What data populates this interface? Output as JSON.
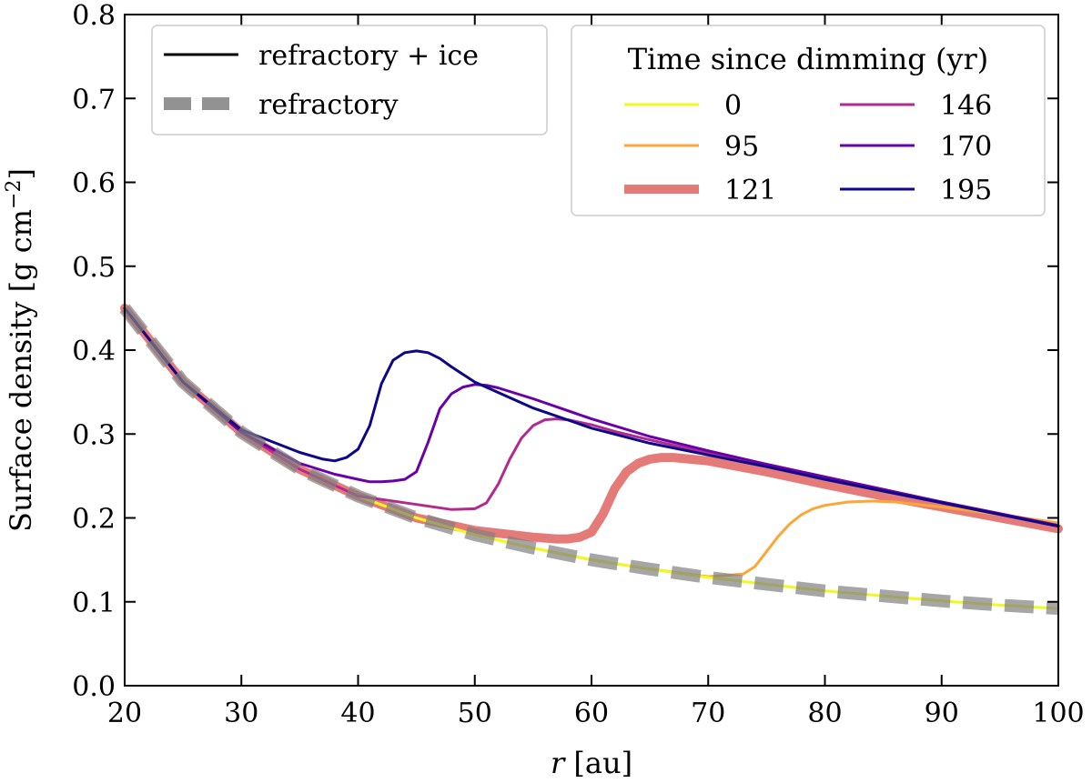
{
  "chart_data": {
    "type": "line",
    "title": "",
    "xlabel_var": "r",
    "xlabel_unit": " [au]",
    "ylabel": "Surface density [g cm",
    "ylabel_sup": "−2",
    "ylabel_end": "]",
    "xlim": [
      20,
      100
    ],
    "ylim": [
      0.0,
      0.8
    ],
    "xticks": [
      20,
      30,
      40,
      50,
      60,
      70,
      80,
      90,
      100
    ],
    "yticks": [
      0.0,
      0.1,
      0.2,
      0.3,
      0.4,
      0.5,
      0.6,
      0.7,
      0.8
    ],
    "xtick_labels": [
      "20",
      "30",
      "40",
      "50",
      "60",
      "70",
      "80",
      "90",
      "100"
    ],
    "ytick_labels": [
      "0.0",
      "0.1",
      "0.2",
      "0.3",
      "0.4",
      "0.5",
      "0.6",
      "0.7",
      "0.8"
    ],
    "style_legend": {
      "placement": "top-left",
      "entries": [
        {
          "label": "refractory + ice",
          "color": "#000000",
          "style": "solid"
        },
        {
          "label": "refractory",
          "color": "#808080",
          "style": "dashed"
        }
      ]
    },
    "time_legend": {
      "placement": "top-right",
      "title": "Time since dimming (yr)",
      "entries": [
        {
          "label": "0",
          "color": "#f0f921"
        },
        {
          "label": "95",
          "color": "#fca636"
        },
        {
          "label": "121",
          "color": "#e16462"
        },
        {
          "label": "146",
          "color": "#b12a90"
        },
        {
          "label": "170",
          "color": "#6a00a8"
        },
        {
          "label": "195",
          "color": "#0d0887"
        }
      ]
    },
    "series": [
      {
        "name": "refractory (t=0)",
        "time": "0",
        "color": "#f0f921",
        "x": [
          20,
          25,
          30,
          35,
          40,
          45,
          50,
          55,
          60,
          65,
          70,
          75,
          80,
          85,
          90,
          95,
          100
        ],
        "values": [
          0.45,
          0.362,
          0.302,
          0.258,
          0.226,
          0.2,
          0.18,
          0.164,
          0.15,
          0.139,
          0.129,
          0.121,
          0.113,
          0.107,
          0.101,
          0.096,
          0.092
        ]
      },
      {
        "name": "refractory + ice (t=95)",
        "time": "95",
        "color": "#fca636",
        "x": [
          20,
          25,
          30,
          35,
          40,
          45,
          50,
          55,
          60,
          65,
          70,
          73,
          74,
          75,
          76,
          77,
          78,
          79,
          80,
          82,
          84,
          86,
          90,
          95,
          100
        ],
        "values": [
          0.45,
          0.362,
          0.302,
          0.258,
          0.226,
          0.2,
          0.18,
          0.164,
          0.15,
          0.139,
          0.13,
          0.133,
          0.142,
          0.16,
          0.178,
          0.193,
          0.204,
          0.211,
          0.215,
          0.219,
          0.22,
          0.219,
          0.213,
          0.204,
          0.194
        ]
      },
      {
        "name": "refractory + ice (t=121)",
        "time": "121",
        "color": "#e16462",
        "x": [
          20,
          25,
          30,
          35,
          40,
          45,
          50,
          55,
          57,
          58,
          59,
          60,
          61,
          62,
          63,
          64,
          65,
          66,
          67,
          70,
          75,
          80,
          85,
          90,
          95,
          100
        ],
        "values": [
          0.45,
          0.362,
          0.302,
          0.258,
          0.226,
          0.2,
          0.185,
          0.177,
          0.175,
          0.175,
          0.177,
          0.183,
          0.205,
          0.235,
          0.255,
          0.265,
          0.27,
          0.272,
          0.272,
          0.268,
          0.255,
          0.24,
          0.226,
          0.213,
          0.2,
          0.187
        ]
      },
      {
        "name": "refractory + ice (t=146)",
        "time": "146",
        "color": "#b12a90",
        "x": [
          20,
          25,
          30,
          35,
          40,
          45,
          48,
          50,
          51,
          52,
          53,
          54,
          55,
          56,
          57,
          58,
          60,
          62,
          65,
          70,
          75,
          80,
          85,
          90,
          95,
          100
        ],
        "values": [
          0.45,
          0.362,
          0.302,
          0.258,
          0.226,
          0.216,
          0.21,
          0.211,
          0.218,
          0.24,
          0.27,
          0.295,
          0.31,
          0.317,
          0.318,
          0.317,
          0.311,
          0.303,
          0.293,
          0.277,
          0.262,
          0.247,
          0.233,
          0.219,
          0.205,
          0.191
        ]
      },
      {
        "name": "refractory + ice (t=170)",
        "time": "170",
        "color": "#6a00a8",
        "x": [
          20,
          25,
          30,
          35,
          38,
          40,
          41,
          42,
          43,
          44,
          45,
          46,
          47,
          48,
          49,
          50,
          51,
          52,
          55,
          60,
          65,
          70,
          75,
          80,
          85,
          90,
          95,
          100
        ],
        "values": [
          0.45,
          0.362,
          0.302,
          0.265,
          0.252,
          0.246,
          0.243,
          0.243,
          0.244,
          0.246,
          0.255,
          0.29,
          0.33,
          0.348,
          0.356,
          0.359,
          0.358,
          0.355,
          0.342,
          0.318,
          0.297,
          0.28,
          0.264,
          0.249,
          0.234,
          0.219,
          0.205,
          0.191
        ]
      },
      {
        "name": "refractory + ice (t=195)",
        "time": "195",
        "color": "#0d0887",
        "x": [
          20,
          25,
          30,
          35,
          37,
          38,
          39,
          40,
          41,
          42,
          43,
          44,
          45,
          46,
          47,
          48,
          50,
          55,
          60,
          65,
          70,
          75,
          80,
          85,
          90,
          95,
          100
        ],
        "values": [
          0.45,
          0.362,
          0.305,
          0.278,
          0.27,
          0.268,
          0.272,
          0.282,
          0.31,
          0.36,
          0.388,
          0.397,
          0.399,
          0.397,
          0.39,
          0.38,
          0.362,
          0.331,
          0.307,
          0.289,
          0.275,
          0.261,
          0.246,
          0.232,
          0.218,
          0.204,
          0.19
        ]
      }
    ]
  }
}
